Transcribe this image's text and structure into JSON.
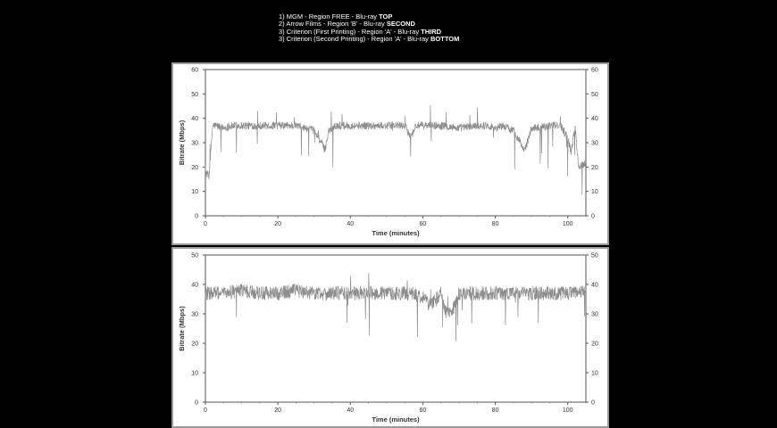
{
  "legend": {
    "items": [
      {
        "text": "1) MGM - Region FREE - Blu-ray ",
        "position": "TOP"
      },
      {
        "text": "2) Arrow Films - Region 'B' - Blu-ray ",
        "position": "SECOND"
      },
      {
        "text": "3) Criterion (First Printing) - Region 'A' - Blu-ray ",
        "position": "THIRD"
      },
      {
        "text": "3) Criterion (Second Printing) - Region 'A' - Blu-ray ",
        "position": "BOTTOM"
      }
    ]
  },
  "colors": {
    "background": "#000000",
    "plot_background": "#ffffff",
    "trace": "#8c8c8c",
    "frame": "#9a9a9a"
  },
  "chart_data": [
    {
      "type": "line",
      "xlabel": "Time (minutes)",
      "ylabel": "Bitrate (Mbps)",
      "xlim": [
        0,
        105
      ],
      "ylim": [
        0,
        60
      ],
      "xticks": [
        0,
        20,
        40,
        60,
        80,
        100
      ],
      "yticks": [
        0,
        10,
        20,
        30,
        40,
        50,
        60
      ],
      "grid": false,
      "series": [
        {
          "x": [
            0,
            1,
            2,
            3,
            5,
            8,
            10,
            15,
            20,
            25,
            30,
            32,
            33,
            34,
            36,
            40,
            43,
            45,
            50,
            55,
            56,
            57,
            58,
            60,
            65,
            70,
            75,
            78,
            80,
            82,
            85,
            87,
            88,
            90,
            95,
            98,
            100,
            101,
            102,
            103,
            104,
            105
          ],
          "y": [
            18,
            16,
            37,
            37,
            36,
            37,
            37,
            37,
            37,
            37,
            35,
            30,
            27,
            35,
            37,
            37,
            37,
            37,
            37,
            37,
            34,
            33,
            37,
            37,
            37,
            36,
            37,
            37,
            36,
            37,
            35,
            30,
            26,
            36,
            37,
            37,
            32,
            26,
            37,
            20,
            21,
            22
          ]
        }
      ]
    },
    {
      "type": "line",
      "xlabel": "Time (minutes)",
      "ylabel": "Bitrate (Mbps)",
      "xlim": [
        0,
        105
      ],
      "ylim": [
        0,
        50
      ],
      "xticks": [
        0,
        20,
        40,
        60,
        80,
        100
      ],
      "yticks": [
        0,
        10,
        20,
        30,
        40,
        50
      ],
      "grid": false,
      "series": [
        {
          "x": [
            0,
            1,
            5,
            10,
            15,
            20,
            25,
            30,
            35,
            40,
            45,
            50,
            55,
            60,
            62,
            65,
            66,
            68,
            70,
            75,
            80,
            85,
            90,
            95,
            100,
            103,
            105
          ],
          "y": [
            37,
            37,
            37,
            38,
            37,
            37,
            38,
            37,
            37,
            37,
            37,
            37,
            37,
            36,
            33,
            37,
            31,
            30,
            37,
            37,
            37,
            37,
            37,
            37,
            37,
            37,
            38
          ]
        }
      ]
    }
  ]
}
